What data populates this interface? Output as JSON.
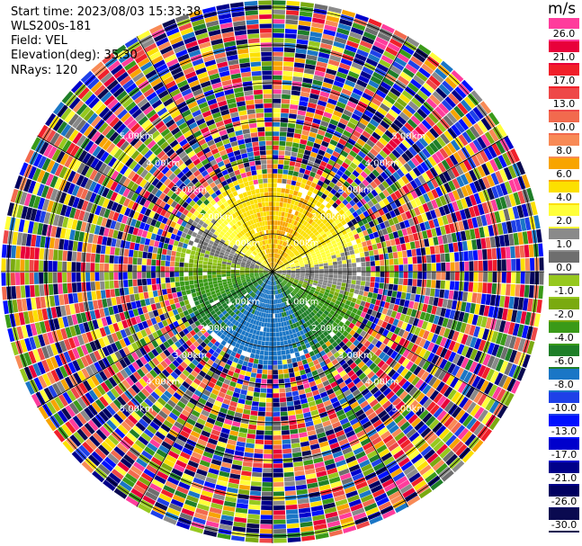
{
  "info": {
    "start_time": "Start time: 2023/08/03 15:33:38",
    "station": "WLS200s-181",
    "field": "Field: VEL",
    "elevation": "Elevation(deg): 35.30",
    "nrays": "NRays: 120"
  },
  "colorbar": {
    "unit": "m/s",
    "levels": [
      {
        "label": "26.0",
        "color": "#ff3c9c"
      },
      {
        "label": "21.0",
        "color": "#e8003a"
      },
      {
        "label": "17.0",
        "color": "#f0202a"
      },
      {
        "label": "13.0",
        "color": "#ee4848"
      },
      {
        "label": "10.0",
        "color": "#f26a4e"
      },
      {
        "label": "8.0",
        "color": "#f88a56"
      },
      {
        "label": "6.0",
        "color": "#f8a400"
      },
      {
        "label": "4.0",
        "color": "#fce000"
      },
      {
        "label": "2.0",
        "color": "#ffff3a"
      },
      {
        "label": "1.0",
        "color": "#8a8a8a"
      },
      {
        "label": "0.0",
        "color": "#6e6e6e"
      },
      {
        "label": "-1.0",
        "color": "#96c81e"
      },
      {
        "label": "-2.0",
        "color": "#7aaa10"
      },
      {
        "label": "-4.0",
        "color": "#3a9a18"
      },
      {
        "label": "-6.0",
        "color": "#1e7e28"
      },
      {
        "label": "-8.0",
        "color": "#1a76c6"
      },
      {
        "label": "-10.0",
        "color": "#1e40e8"
      },
      {
        "label": "-13.0",
        "color": "#0010ff"
      },
      {
        "label": "-17.0",
        "color": "#0000cc"
      },
      {
        "label": "-21.0",
        "color": "#00008a"
      },
      {
        "label": "-26.0",
        "color": "#000060"
      },
      {
        "label": "-30.0",
        "color": "#0a0a50"
      }
    ]
  },
  "chart_data": {
    "type": "heatmap",
    "projection": "polar (PPI)",
    "field": "VEL",
    "units": "m/s",
    "elevation_deg": 35.3,
    "n_rays": 120,
    "range_rings": [
      "1.00km",
      "2.00km",
      "3.00km",
      "4.00km",
      "5.00km"
    ],
    "range_ring_km": [
      1,
      2,
      3,
      4,
      5
    ],
    "spokes_deg": [
      0,
      30,
      60,
      90,
      120,
      150,
      180,
      210,
      240,
      270,
      300,
      330
    ],
    "colorbar_ticks": [
      26.0,
      21.0,
      17.0,
      13.0,
      10.0,
      8.0,
      6.0,
      4.0,
      2.0,
      1.0,
      0.0,
      -1.0,
      -2.0,
      -4.0,
      -6.0,
      -8.0,
      -10.0,
      -13.0,
      -17.0,
      -21.0,
      -26.0,
      -30.0
    ],
    "valid_region_km": 2.5,
    "pattern_near": "positive (orange/yellow) to the north, near-zero (gray) east, negative (green/blue) to the south",
    "pattern_far": "noise beyond ~2.5 km"
  }
}
